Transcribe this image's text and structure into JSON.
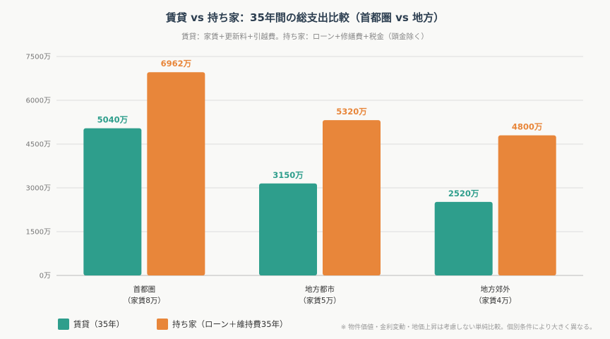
{
  "chart_data": {
    "type": "bar",
    "title": "賃貸 vs 持ち家：35年間の総支出比較（首都圏 vs 地方）",
    "subtitle": "賃貸：家賃+更新料+引越費。持ち家：ローン+修繕費+税金（頭金除く）",
    "categories": [
      [
        "首都圏",
        "（家賃8万）"
      ],
      [
        "地方都市",
        "（家賃5万）"
      ],
      [
        "地方郊外",
        "（家賃4万）"
      ]
    ],
    "series": [
      {
        "name": "賃貸（35年）",
        "color": "#2e9e8c",
        "values": [
          5040,
          3150,
          2520
        ]
      },
      {
        "name": "持ち家（ローン＋維持費35年）",
        "color": "#e8863a",
        "values": [
          6962,
          5320,
          4800
        ]
      }
    ],
    "unit": "万",
    "ylim": [
      0,
      7500
    ],
    "yticks": [
      0,
      1500,
      3000,
      4500,
      6000,
      7500
    ],
    "grid": true,
    "legend_position": "bottom-left",
    "note": "※ 物件価値・金利変動・地価上昇は考慮しない単純比較。個別条件により大きく異なる。"
  }
}
